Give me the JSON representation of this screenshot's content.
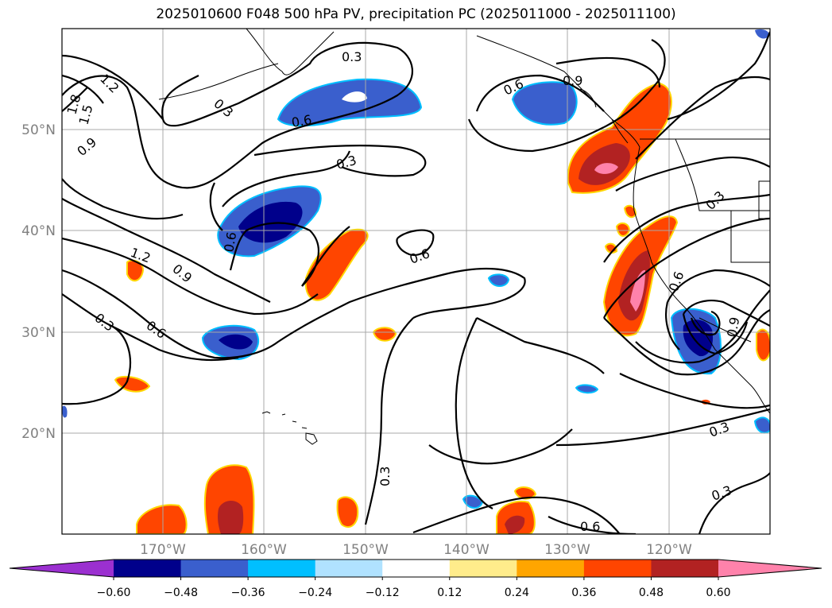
{
  "title": "2025010600 F048 500 hPa PV, precipitation PC (2025011000 - 2025011100)",
  "map": {
    "lat_labels": [
      "50°N",
      "40°N",
      "30°N",
      "20°N"
    ],
    "lon_labels": [
      "170°W",
      "160°W",
      "150°W",
      "140°W",
      "130°W",
      "120°W"
    ],
    "contour_labels": [
      "0.3",
      "0.3",
      "0.3",
      "0.3",
      "0.3",
      "0.3",
      "0.3",
      "0.3",
      "0.6",
      "0.6",
      "0.6",
      "0.6",
      "0.6",
      "0.6",
      "0.9",
      "0.9",
      "0.9",
      "1.2",
      "1.2",
      "1.5",
      "1.8",
      "0.6",
      "0.9"
    ]
  },
  "colorbar": {
    "ticks": [
      "−0.60",
      "−0.48",
      "−0.36",
      "−0.24",
      "−0.12",
      "0.12",
      "0.24",
      "0.36",
      "0.48",
      "0.60"
    ],
    "colors": [
      "#9b30d0",
      "#00008b",
      "#3a5fcd",
      "#00bfff",
      "#b0e2ff",
      "#ffffff",
      "#ffec8b",
      "#ffa500",
      "#ff4500",
      "#b22222",
      "#ff82ab"
    ]
  }
}
